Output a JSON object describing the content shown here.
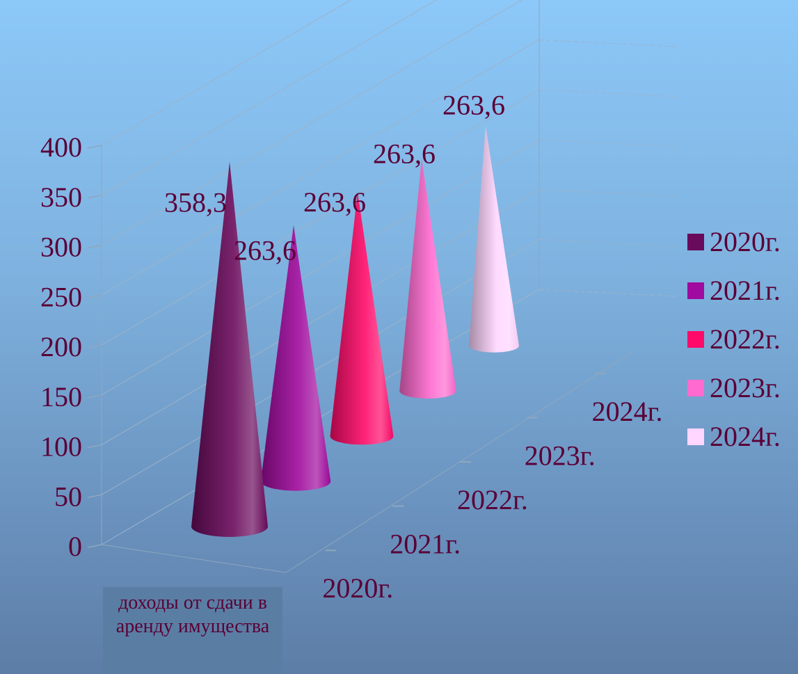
{
  "chart_data": {
    "type": "bar",
    "style": "3d-cone",
    "categories": [
      "доходы от сдачи в аренду имущества"
    ],
    "series": [
      {
        "name": "2020г.",
        "values": [
          358.3
        ],
        "color": "#6a0a5c"
      },
      {
        "name": "2021г.",
        "values": [
          263.6
        ],
        "color": "#a00a9e"
      },
      {
        "name": "2022г.",
        "values": [
          263.6
        ],
        "color": "#ff0a6a"
      },
      {
        "name": "2023г.",
        "values": [
          263.6
        ],
        "color": "#ff6ad0"
      },
      {
        "name": "2024г.",
        "values": [
          263.6
        ],
        "color": "#ffd6ff"
      }
    ],
    "data_labels": [
      "358,3",
      "263,6",
      "263,6",
      "263,6",
      "263,6"
    ],
    "y_ticks": [
      "0",
      "50",
      "100",
      "150",
      "200",
      "250",
      "300",
      "350",
      "400"
    ],
    "depth_labels": [
      "2020г.",
      "2021г.",
      "2022г.",
      "2023г.",
      "2024г."
    ],
    "ylim": [
      0,
      400
    ],
    "grid": true,
    "legend_position": "right"
  }
}
